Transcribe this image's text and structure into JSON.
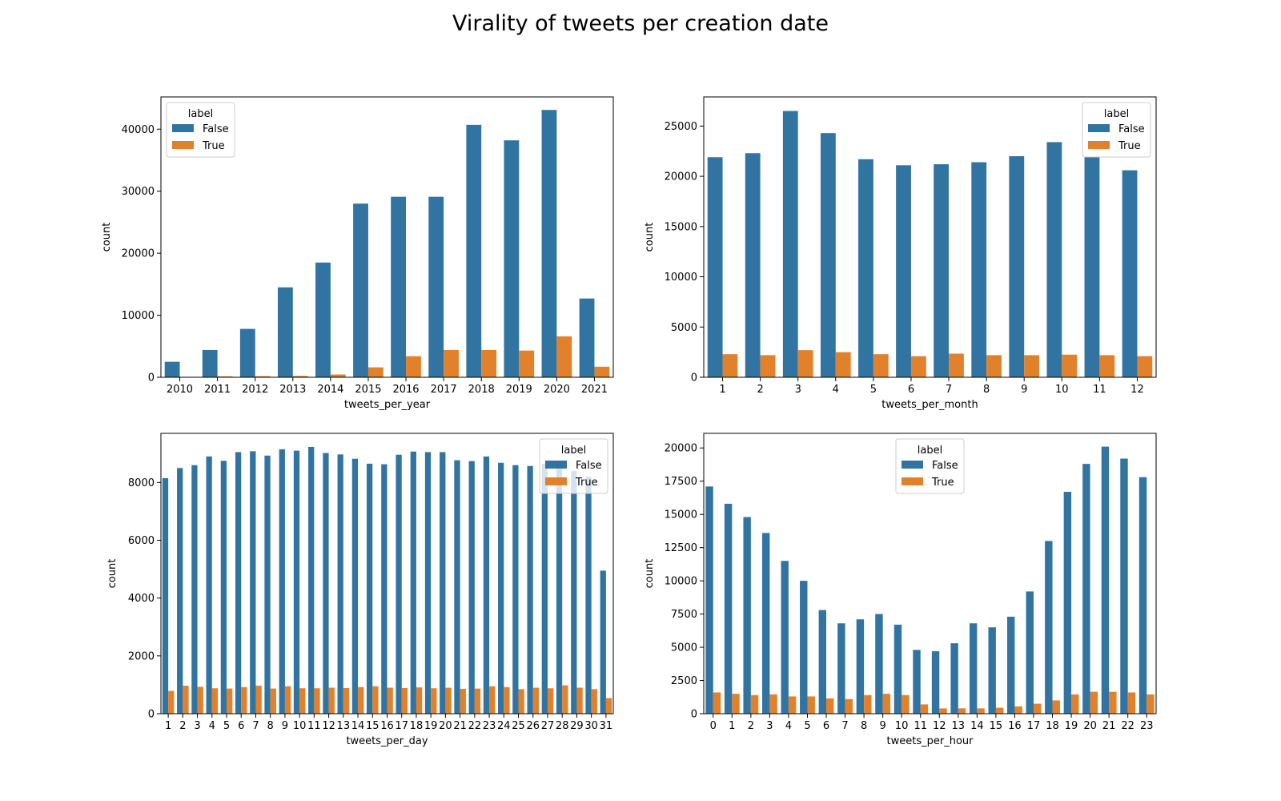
{
  "figure": {
    "title": "Virality of tweets per creation date",
    "colors": {
      "False": "#3274a1",
      "True": "#e1812c"
    }
  },
  "chart_data": [
    {
      "type": "bar",
      "xlabel": "tweets_per_year",
      "ylabel": "count",
      "ylim": [
        0,
        45200
      ],
      "yticks": [
        0,
        10000,
        20000,
        30000,
        40000
      ],
      "legend": {
        "title": "label",
        "position": "top-left",
        "entries": [
          "False",
          "True"
        ]
      },
      "categories": [
        "2010",
        "2011",
        "2012",
        "2013",
        "2014",
        "2015",
        "2016",
        "2017",
        "2018",
        "2019",
        "2020",
        "2021"
      ],
      "series": [
        {
          "name": "False",
          "values": [
            2500,
            4400,
            7800,
            14500,
            18500,
            28000,
            29100,
            29100,
            40700,
            38200,
            43100,
            12700
          ]
        },
        {
          "name": "True",
          "values": [
            60,
            150,
            180,
            220,
            450,
            1600,
            3400,
            4400,
            4400,
            4300,
            6600,
            1700
          ]
        }
      ]
    },
    {
      "type": "bar",
      "xlabel": "tweets_per_month",
      "ylabel": "count",
      "ylim": [
        0,
        27900
      ],
      "yticks": [
        0,
        5000,
        10000,
        15000,
        20000,
        25000
      ],
      "legend": {
        "title": "label",
        "position": "top-right",
        "entries": [
          "False",
          "True"
        ]
      },
      "categories": [
        "1",
        "2",
        "3",
        "4",
        "5",
        "6",
        "7",
        "8",
        "9",
        "10",
        "11",
        "12"
      ],
      "series": [
        {
          "name": "False",
          "values": [
            21900,
            22300,
            26500,
            24300,
            21700,
            21100,
            21200,
            21400,
            22000,
            23400,
            21900,
            20600
          ]
        },
        {
          "name": "True",
          "values": [
            2300,
            2200,
            2700,
            2500,
            2300,
            2100,
            2350,
            2200,
            2200,
            2250,
            2200,
            2100
          ]
        }
      ]
    },
    {
      "type": "bar",
      "xlabel": "tweets_per_day",
      "ylabel": "count",
      "ylim": [
        0,
        9700
      ],
      "yticks": [
        0,
        2000,
        4000,
        6000,
        8000
      ],
      "legend": {
        "title": "label",
        "position": "top-right",
        "entries": [
          "False",
          "True"
        ]
      },
      "categories": [
        "1",
        "2",
        "3",
        "4",
        "5",
        "6",
        "7",
        "8",
        "9",
        "10",
        "11",
        "12",
        "13",
        "14",
        "15",
        "16",
        "17",
        "18",
        "19",
        "20",
        "21",
        "22",
        "23",
        "24",
        "25",
        "26",
        "27",
        "28",
        "29",
        "30",
        "31"
      ],
      "series": [
        {
          "name": "False",
          "values": [
            8150,
            8500,
            8600,
            8900,
            8750,
            9050,
            9080,
            8930,
            9150,
            9100,
            9230,
            9020,
            8970,
            8820,
            8650,
            8630,
            8960,
            9070,
            9050,
            9050,
            8770,
            8740,
            8900,
            8680,
            8600,
            8570,
            8650,
            8500,
            8400,
            8200,
            4950
          ]
        },
        {
          "name": "True",
          "values": [
            790,
            970,
            930,
            880,
            870,
            920,
            970,
            870,
            950,
            880,
            880,
            900,
            890,
            920,
            950,
            900,
            890,
            910,
            880,
            900,
            860,
            870,
            950,
            920,
            850,
            900,
            880,
            980,
            900,
            850,
            540
          ]
        }
      ]
    },
    {
      "type": "bar",
      "xlabel": "tweets_per_hour",
      "ylabel": "count",
      "ylim": [
        0,
        21100
      ],
      "yticks": [
        0,
        2500,
        5000,
        7500,
        10000,
        12500,
        15000,
        17500,
        20000
      ],
      "legend": {
        "title": "label",
        "position": "top-center",
        "entries": [
          "False",
          "True"
        ]
      },
      "categories": [
        "0",
        "1",
        "2",
        "3",
        "4",
        "5",
        "6",
        "7",
        "8",
        "9",
        "10",
        "11",
        "12",
        "13",
        "14",
        "15",
        "16",
        "17",
        "18",
        "19",
        "20",
        "21",
        "22",
        "23"
      ],
      "series": [
        {
          "name": "False",
          "values": [
            17100,
            15800,
            14800,
            13600,
            11500,
            10000,
            7800,
            6800,
            7100,
            7500,
            6700,
            4800,
            4700,
            5300,
            6800,
            6500,
            7300,
            9200,
            13000,
            16700,
            18800,
            20100,
            19200,
            17800
          ]
        },
        {
          "name": "True",
          "values": [
            1600,
            1500,
            1400,
            1450,
            1300,
            1300,
            1150,
            1100,
            1400,
            1500,
            1400,
            700,
            400,
            400,
            400,
            450,
            550,
            750,
            1000,
            1450,
            1650,
            1650,
            1600,
            1450
          ]
        }
      ]
    }
  ]
}
